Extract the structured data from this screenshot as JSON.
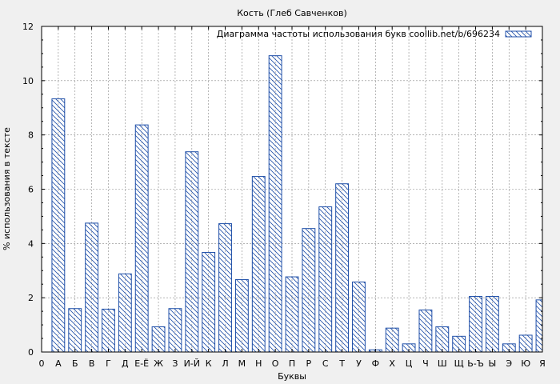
{
  "chart_data": {
    "type": "bar",
    "title": "Кость (Глеб Савченков)",
    "xlabel": "Буквы",
    "ylabel": "% использования в тексте",
    "ylim": [
      0,
      12
    ],
    "yticks": [
      0,
      2,
      4,
      6,
      8,
      10,
      12
    ],
    "grid": true,
    "legend_position": "top-right",
    "categories": [
      "0",
      "А",
      "Б",
      "В",
      "Г",
      "Д",
      "Е-Ё",
      "Ж",
      "З",
      "И-Й",
      "К",
      "Л",
      "М",
      "Н",
      "О",
      "П",
      "Р",
      "С",
      "Т",
      "У",
      "Ф",
      "Х",
      "Ц",
      "Ч",
      "Ш",
      "Щ",
      "Ь-Ъ",
      "Ы",
      "Э",
      "Ю",
      "Я"
    ],
    "series": [
      {
        "name": "Диаграмма частоты использования букв coollib.net/b/696234",
        "values": [
          0,
          9.33,
          1.6,
          4.75,
          1.58,
          2.88,
          8.37,
          0.93,
          1.6,
          7.38,
          3.67,
          4.73,
          2.67,
          6.47,
          10.92,
          2.77,
          4.55,
          5.35,
          6.2,
          2.58,
          0.08,
          0.88,
          0.3,
          1.55,
          0.93,
          0.58,
          2.05,
          2.05,
          0.3,
          0.62,
          1.92
        ]
      }
    ],
    "colors": {
      "bar_stroke": "#1f4fa8",
      "background": "#f0f0f0",
      "plot_background": "#ffffff"
    }
  }
}
